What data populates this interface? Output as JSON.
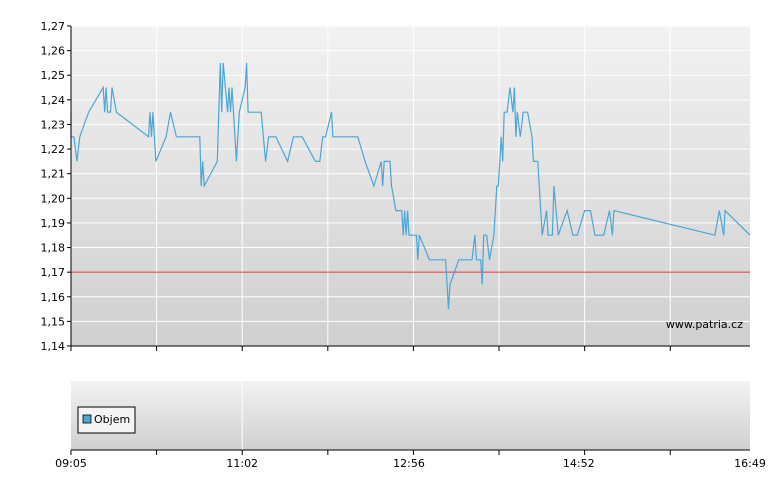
{
  "watermark": "www.patria.cz",
  "chart_data": [
    {
      "type": "line",
      "title": "",
      "xlabel": "",
      "ylabel": "",
      "ylim": [
        1.14,
        1.27
      ],
      "y_ticks": [
        "1,14",
        "1,15",
        "1,16",
        "1,17",
        "1,18",
        "1,19",
        "1,20",
        "1,21",
        "1,22",
        "1,23",
        "1,24",
        "1,25",
        "1,26",
        "1,27"
      ],
      "x_ticks": [
        "09:05",
        "11:02",
        "12:56",
        "14:52",
        "16:49"
      ],
      "grid": true,
      "reference_line": {
        "value": 1.17,
        "color": "#e03030"
      },
      "series": [
        {
          "color": "#4aa6d6",
          "points": [
            [
              "09:05",
              1.235
            ],
            [
              "09:05",
              1.225
            ],
            [
              "09:07",
              1.225
            ],
            [
              "09:09",
              1.215
            ],
            [
              "09:11",
              1.225
            ],
            [
              "09:17",
              1.235
            ],
            [
              "09:27",
              1.245
            ],
            [
              "09:28",
              1.235
            ],
            [
              "09:29",
              1.245
            ],
            [
              "09:30",
              1.235
            ],
            [
              "09:32",
              1.235
            ],
            [
              "09:33",
              1.245
            ],
            [
              "09:36",
              1.235
            ],
            [
              "09:58",
              1.225
            ],
            [
              "09:59",
              1.235
            ],
            [
              "10:00",
              1.225
            ],
            [
              "10:01",
              1.235
            ],
            [
              "10:03",
              1.215
            ],
            [
              "10:10",
              1.225
            ],
            [
              "10:13",
              1.235
            ],
            [
              "10:17",
              1.225
            ],
            [
              "10:33",
              1.225
            ],
            [
              "10:34",
              1.205
            ],
            [
              "10:35",
              1.215
            ],
            [
              "10:36",
              1.205
            ],
            [
              "10:45",
              1.215
            ],
            [
              "10:47",
              1.255
            ],
            [
              "10:48",
              1.235
            ],
            [
              "10:49",
              1.255
            ],
            [
              "10:52",
              1.235
            ],
            [
              "10:53",
              1.245
            ],
            [
              "10:54",
              1.235
            ],
            [
              "10:55",
              1.245
            ],
            [
              "10:58",
              1.215
            ],
            [
              "11:00",
              1.235
            ],
            [
              "11:04",
              1.245
            ],
            [
              "11:05",
              1.255
            ],
            [
              "11:06",
              1.235
            ],
            [
              "11:14",
              1.235
            ],
            [
              "11:15",
              1.235
            ],
            [
              "11:18",
              1.215
            ],
            [
              "11:20",
              1.225
            ],
            [
              "11:25",
              1.225
            ],
            [
              "11:33",
              1.215
            ],
            [
              "11:37",
              1.225
            ],
            [
              "11:43",
              1.225
            ],
            [
              "11:52",
              1.215
            ],
            [
              "11:55",
              1.215
            ],
            [
              "11:57",
              1.225
            ],
            [
              "11:59",
              1.225
            ],
            [
              "12:03",
              1.235
            ],
            [
              "12:04",
              1.225
            ],
            [
              "12:19",
              1.225
            ],
            [
              "12:21",
              1.225
            ],
            [
              "12:26",
              1.215
            ],
            [
              "12:32",
              1.205
            ],
            [
              "12:37",
              1.215
            ],
            [
              "12:38",
              1.205
            ],
            [
              "12:39",
              1.215
            ],
            [
              "12:43",
              1.215
            ],
            [
              "12:44",
              1.205
            ],
            [
              "12:47",
              1.195
            ],
            [
              "12:51",
              1.195
            ],
            [
              "12:52",
              1.185
            ],
            [
              "12:53",
              1.195
            ],
            [
              "12:54",
              1.185
            ],
            [
              "12:55",
              1.195
            ],
            [
              "12:56",
              1.185
            ],
            [
              "13:01",
              1.185
            ],
            [
              "13:02",
              1.175
            ],
            [
              "13:03",
              1.185
            ],
            [
              "13:10",
              1.175
            ],
            [
              "13:21",
              1.175
            ],
            [
              "13:22",
              1.165
            ],
            [
              "13:23",
              1.155
            ],
            [
              "13:24",
              1.165
            ],
            [
              "13:30",
              1.175
            ],
            [
              "13:39",
              1.175
            ],
            [
              "13:41",
              1.185
            ],
            [
              "13:42",
              1.175
            ],
            [
              "13:44",
              1.175
            ],
            [
              "13:45",
              1.175
            ],
            [
              "13:46",
              1.165
            ],
            [
              "13:47",
              1.185
            ],
            [
              "13:49",
              1.185
            ],
            [
              "13:51",
              1.175
            ],
            [
              "13:54",
              1.185
            ],
            [
              "13:56",
              1.205
            ],
            [
              "13:57",
              1.205
            ],
            [
              "13:58",
              1.215
            ],
            [
              "13:59",
              1.225
            ],
            [
              "14:00",
              1.215
            ],
            [
              "14:01",
              1.235
            ],
            [
              "14:03",
              1.235
            ],
            [
              "14:05",
              1.245
            ],
            [
              "14:07",
              1.235
            ],
            [
              "14:08",
              1.245
            ],
            [
              "14:09",
              1.225
            ],
            [
              "14:10",
              1.235
            ],
            [
              "14:12",
              1.225
            ],
            [
              "14:14",
              1.235
            ],
            [
              "14:17",
              1.235
            ],
            [
              "14:20",
              1.225
            ],
            [
              "14:21",
              1.215
            ],
            [
              "14:24",
              1.215
            ],
            [
              "14:26",
              1.195
            ],
            [
              "14:27",
              1.185
            ],
            [
              "14:30",
              1.195
            ],
            [
              "14:31",
              1.185
            ],
            [
              "14:34",
              1.185
            ],
            [
              "14:35",
              1.205
            ],
            [
              "14:38",
              1.185
            ],
            [
              "14:44",
              1.195
            ],
            [
              "14:48",
              1.185
            ],
            [
              "14:51",
              1.185
            ],
            [
              "14:56",
              1.195
            ],
            [
              "15:00",
              1.195
            ],
            [
              "15:03",
              1.185
            ],
            [
              "15:09",
              1.185
            ],
            [
              "15:13",
              1.195
            ],
            [
              "15:15",
              1.185
            ],
            [
              "15:16",
              1.195
            ],
            [
              "16:25",
              1.185
            ],
            [
              "16:28",
              1.195
            ],
            [
              "16:31",
              1.185
            ],
            [
              "16:32",
              1.195
            ],
            [
              "16:49",
              1.185
            ]
          ]
        }
      ]
    },
    {
      "type": "bar",
      "title": "",
      "legend": [
        "Objem"
      ],
      "legend_color": "#4aa6d6",
      "x_ticks": [
        "09:05",
        "11:02",
        "12:56",
        "14:52",
        "16:49"
      ],
      "series": [
        {
          "name": "Objem",
          "values": []
        }
      ]
    }
  ]
}
